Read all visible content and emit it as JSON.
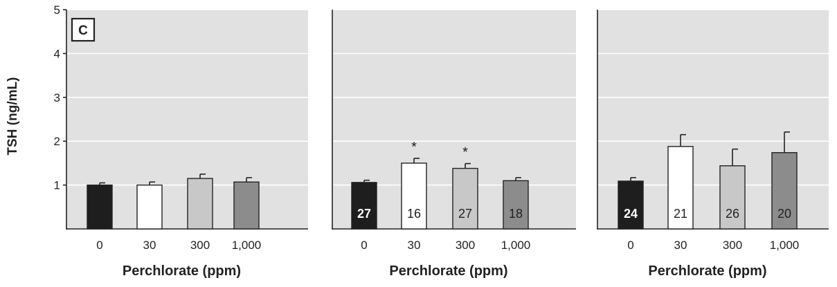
{
  "panel_letter": "C",
  "ylabel": "TSH (ng/mL)",
  "chart_data": [
    {
      "type": "bar",
      "categories": [
        "0",
        "30",
        "300",
        "1,000"
      ],
      "values": [
        1.0,
        1.0,
        1.15,
        1.07
      ],
      "errors": [
        0.05,
        0.07,
        0.1,
        0.1
      ],
      "bar_labels": [
        "",
        "",
        "",
        ""
      ],
      "significance": [
        "",
        "",
        "",
        ""
      ],
      "ylim": [
        0,
        5
      ],
      "yticks": [
        "1",
        "2",
        "3",
        "4",
        "5"
      ],
      "xlabel": "Perchlorate (ppm)",
      "grid": true
    },
    {
      "type": "bar",
      "categories": [
        "0",
        "30",
        "300",
        "1,000"
      ],
      "values": [
        1.06,
        1.5,
        1.38,
        1.1
      ],
      "errors": [
        0.05,
        0.11,
        0.11,
        0.07
      ],
      "bar_labels": [
        "27",
        "16",
        "27",
        "18"
      ],
      "significance": [
        "",
        "*",
        "*",
        ""
      ],
      "ylim": [
        0,
        5
      ],
      "xlabel": "Perchlorate (ppm)",
      "grid": true
    },
    {
      "type": "bar",
      "categories": [
        "0",
        "30",
        "300",
        "1,000"
      ],
      "values": [
        1.09,
        1.88,
        1.44,
        1.74
      ],
      "errors": [
        0.08,
        0.27,
        0.38,
        0.47
      ],
      "bar_labels": [
        "24",
        "21",
        "26",
        "20"
      ],
      "significance": [
        "",
        "",
        "",
        ""
      ],
      "ylim": [
        0,
        5
      ],
      "xlabel": "Perchlorate (ppm)",
      "grid": true
    }
  ],
  "colors": {
    "background": "#e1e1e1",
    "grid": "#ffffff",
    "axis": "#222222",
    "bars": [
      "#1e1e1e",
      "#ffffff",
      "#c8c8c8",
      "#8c8c8c"
    ],
    "bar_label_text": [
      "#ffffff",
      "#222222",
      "#222222",
      "#222222"
    ]
  }
}
